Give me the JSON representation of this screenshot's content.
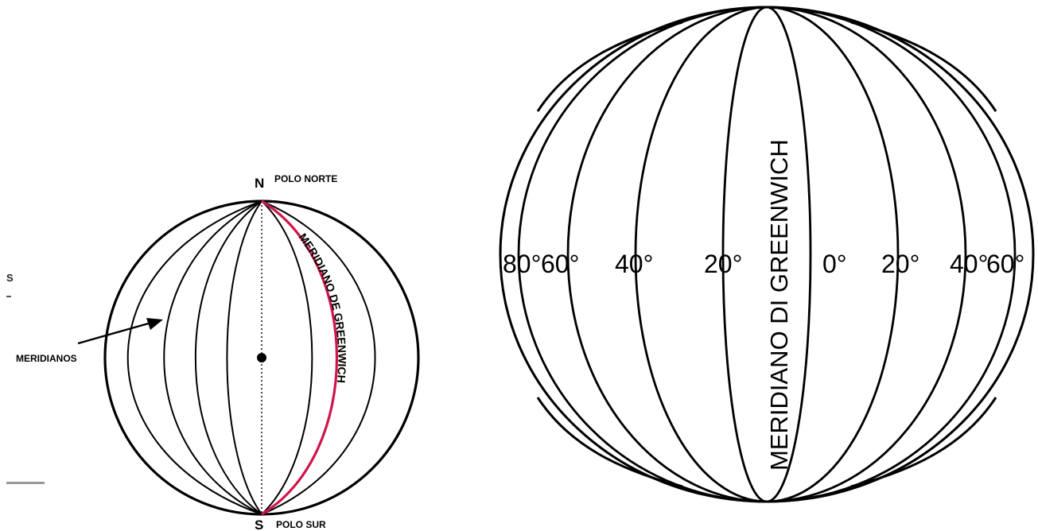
{
  "left_figure": {
    "north_letter": "N",
    "north_label": "POLO NORTE",
    "south_letter": "S",
    "south_label": "POLO SUR",
    "meridians_label": "MERIDIANOS",
    "greenwich_label": "MERIDIANO DE GREENWICH",
    "cropped_edge_fragment": "S",
    "colors": {
      "outline": "#000000",
      "greenwich": "#d0154a"
    }
  },
  "right_figure": {
    "greenwich_label": "MERIDIANO DI GREENWICH",
    "degree_labels": [
      "80°",
      "60°",
      "40°",
      "20°",
      "0°",
      "20°",
      "40°",
      "60°"
    ],
    "colors": {
      "outline": "#000000"
    }
  }
}
